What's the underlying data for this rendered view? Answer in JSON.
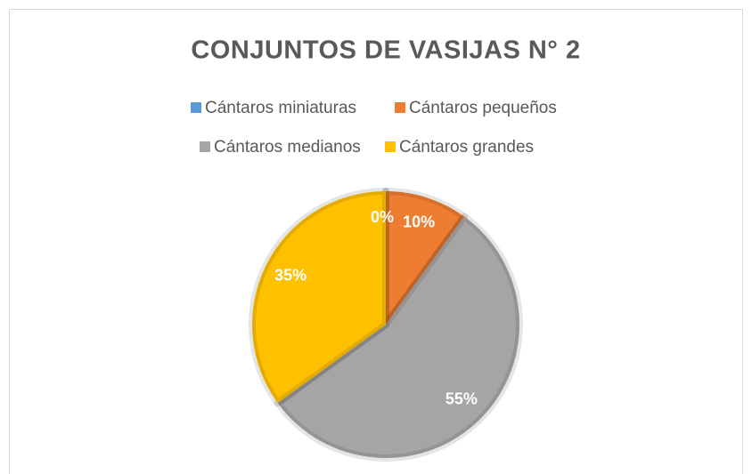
{
  "chart_data": {
    "type": "pie",
    "title": "CONJUNTOS DE VASIJAS N° 2",
    "categories": [
      "Cántaros miniaturas",
      "Cántaros pequeños",
      "Cántaros medianos",
      "Cántaros grandes"
    ],
    "values": [
      0,
      10,
      55,
      35
    ],
    "value_labels": [
      "0%",
      "10%",
      "55%",
      "35%"
    ],
    "colors": [
      "#5b9bd5",
      "#ed7d31",
      "#a5a5a5",
      "#ffc000"
    ],
    "legend": "top"
  }
}
